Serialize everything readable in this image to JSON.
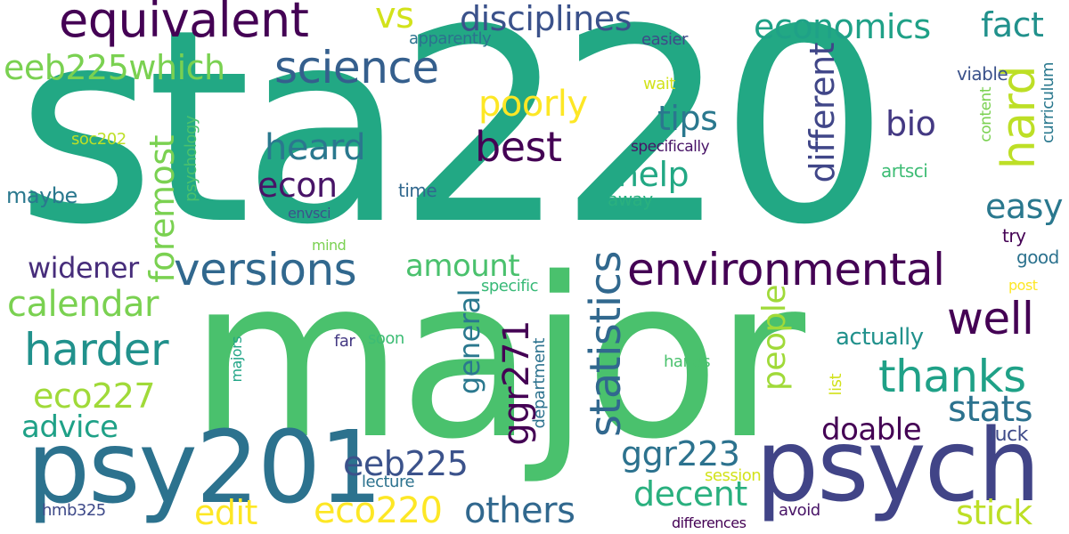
{
  "words": [
    {
      "text": "sta220",
      "color": "#22a884",
      "vertical": false
    },
    {
      "text": "major",
      "color": "#4ac16d",
      "vertical": false
    },
    {
      "text": "psy201",
      "color": "#2c728e",
      "vertical": false
    },
    {
      "text": "psych",
      "color": "#414487",
      "vertical": false
    },
    {
      "text": "equivalent",
      "color": "#440154",
      "vertical": false
    },
    {
      "text": "disciplines",
      "color": "#3b528b",
      "vertical": false
    },
    {
      "text": "vs",
      "color": "#d2e21b",
      "vertical": false
    },
    {
      "text": "economics",
      "color": "#1fa187",
      "vertical": false
    },
    {
      "text": "fact",
      "color": "#21918c",
      "vertical": false
    },
    {
      "text": "science",
      "color": "#355f8d",
      "vertical": false
    },
    {
      "text": "eeb225which",
      "color": "#7ad151",
      "vertical": false
    },
    {
      "text": "poorly",
      "color": "#fde725",
      "vertical": false
    },
    {
      "text": "hard",
      "color": "#bddf26",
      "vertical": true
    },
    {
      "text": "tips",
      "color": "#2a788e",
      "vertical": false
    },
    {
      "text": "bio",
      "color": "#443983",
      "vertical": false
    },
    {
      "text": "best",
      "color": "#440154",
      "vertical": false
    },
    {
      "text": "heard",
      "color": "#2a788e",
      "vertical": false
    },
    {
      "text": "help",
      "color": "#22a884",
      "vertical": false
    },
    {
      "text": "econ",
      "color": "#481467",
      "vertical": false
    },
    {
      "text": "foremost",
      "color": "#7ad151",
      "vertical": true
    },
    {
      "text": "different",
      "color": "#404688",
      "vertical": true
    },
    {
      "text": "easy",
      "color": "#2a788e",
      "vertical": false
    },
    {
      "text": "versions",
      "color": "#31688e",
      "vertical": false
    },
    {
      "text": "environmental",
      "color": "#440154",
      "vertical": false
    },
    {
      "text": "widener",
      "color": "#472d7b",
      "vertical": false
    },
    {
      "text": "amount",
      "color": "#4ac16d",
      "vertical": false
    },
    {
      "text": "calendar",
      "color": "#7ad151",
      "vertical": false
    },
    {
      "text": "well",
      "color": "#440154",
      "vertical": false
    },
    {
      "text": "harder",
      "color": "#21918c",
      "vertical": false
    },
    {
      "text": "statistics",
      "color": "#31688e",
      "vertical": true
    },
    {
      "text": "thanks",
      "color": "#1fa187",
      "vertical": false
    },
    {
      "text": "people",
      "color": "#a0da39",
      "vertical": true
    },
    {
      "text": "stats",
      "color": "#2c728e",
      "vertical": false
    },
    {
      "text": "eco227",
      "color": "#a0da39",
      "vertical": false
    },
    {
      "text": "general",
      "color": "#2a788e",
      "vertical": true
    },
    {
      "text": "ggr271",
      "color": "#440154",
      "vertical": true
    },
    {
      "text": "advice",
      "color": "#1fa187",
      "vertical": false
    },
    {
      "text": "doable",
      "color": "#440154",
      "vertical": false
    },
    {
      "text": "eeb225",
      "color": "#3b528b",
      "vertical": false
    },
    {
      "text": "ggr223",
      "color": "#2c728e",
      "vertical": false
    },
    {
      "text": "decent",
      "color": "#2ab07f",
      "vertical": false
    },
    {
      "text": "edit",
      "color": "#fde725",
      "vertical": false
    },
    {
      "text": "eco220",
      "color": "#fde725",
      "vertical": false
    },
    {
      "text": "others",
      "color": "#31688e",
      "vertical": false
    },
    {
      "text": "stick",
      "color": "#bddf26",
      "vertical": false
    },
    {
      "text": "actually",
      "color": "#21918c",
      "vertical": false
    },
    {
      "text": "luck",
      "color": "#3e4a89",
      "vertical": false
    },
    {
      "text": "good",
      "color": "#2c728e",
      "vertical": false
    },
    {
      "text": "try",
      "color": "#440154",
      "vertical": false
    },
    {
      "text": "maybe",
      "color": "#2a788e",
      "vertical": false
    },
    {
      "text": "time",
      "color": "#31688e",
      "vertical": false
    },
    {
      "text": "envsci",
      "color": "#3b528b",
      "vertical": false
    },
    {
      "text": "soc202",
      "color": "#bddf26",
      "vertical": false
    },
    {
      "text": "psychology",
      "color": "#4ac16d",
      "vertical": true
    },
    {
      "text": "apparently",
      "color": "#2c728e",
      "vertical": false
    },
    {
      "text": "easier",
      "color": "#3e4a89",
      "vertical": false
    },
    {
      "text": "viable",
      "color": "#3b528b",
      "vertical": false
    },
    {
      "text": "wait",
      "color": "#d2e21b",
      "vertical": false
    },
    {
      "text": "specifically",
      "color": "#481467",
      "vertical": false
    },
    {
      "text": "content",
      "color": "#7ad151",
      "vertical": true
    },
    {
      "text": "curriculum",
      "color": "#2a788e",
      "vertical": true
    },
    {
      "text": "artsci",
      "color": "#3dbc74",
      "vertical": false
    },
    {
      "text": "away",
      "color": "#2ab07f",
      "vertical": false
    },
    {
      "text": "mind",
      "color": "#7ad151",
      "vertical": false
    },
    {
      "text": "specific",
      "color": "#38b977",
      "vertical": false
    },
    {
      "text": "post",
      "color": "#fde725",
      "vertical": false
    },
    {
      "text": "far",
      "color": "#443983",
      "vertical": false
    },
    {
      "text": "soon",
      "color": "#3dbc74",
      "vertical": false
    },
    {
      "text": "majors",
      "color": "#20a486",
      "vertical": true
    },
    {
      "text": "department",
      "color": "#2c728e",
      "vertical": true
    },
    {
      "text": "hands",
      "color": "#4ac16d",
      "vertical": false
    },
    {
      "text": "list",
      "color": "#d2e21b",
      "vertical": true
    },
    {
      "text": "session",
      "color": "#d2e21b",
      "vertical": false
    },
    {
      "text": "lecture",
      "color": "#2c728e",
      "vertical": false
    },
    {
      "text": "hmb325",
      "color": "#3e4a89",
      "vertical": false
    },
    {
      "text": "avoid",
      "color": "#481467",
      "vertical": false
    },
    {
      "text": "differences",
      "color": "#440154",
      "vertical": false
    }
  ]
}
